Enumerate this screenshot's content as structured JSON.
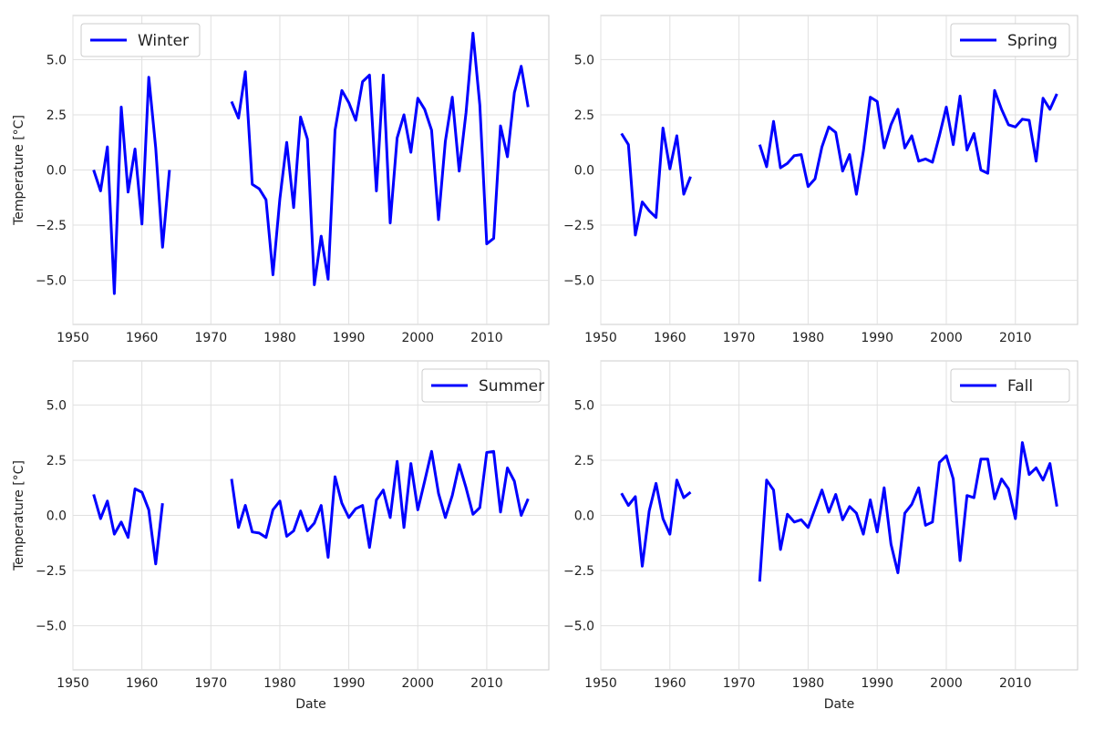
{
  "chart_data": [
    {
      "type": "line",
      "xlabel": "",
      "ylabel": "Temperature [°C]",
      "xlim": [
        1950,
        2019
      ],
      "ylim": [
        -7,
        7
      ],
      "xticks": [
        "1950",
        "1960",
        "1970",
        "1980",
        "1990",
        "2000",
        "2010"
      ],
      "yticks": [
        "−5.0",
        "−2.5",
        "0.0",
        "2.5",
        "5.0"
      ],
      "grid": true,
      "legend_position": "upper-left",
      "series": [
        {
          "name": "Winter",
          "color": "#0000ff",
          "x": [
            1953,
            1954,
            1955,
            1956,
            1957,
            1958,
            1959,
            1960,
            1961,
            1962,
            1963,
            1964,
            null,
            1973,
            1974,
            1975,
            1976,
            1977,
            1978,
            1979,
            1980,
            1981,
            1982,
            1983,
            1984,
            1985,
            1986,
            1987,
            1988,
            1989,
            1990,
            1991,
            1992,
            1993,
            1994,
            1995,
            1996,
            1997,
            1998,
            1999,
            2000,
            2001,
            2002,
            2003,
            2004,
            2005,
            2006,
            2007,
            2008,
            2009,
            2010,
            2011,
            2012,
            2013,
            2014,
            2015,
            2016
          ],
          "y": [
            0.0,
            -0.95,
            1.05,
            -5.6,
            2.85,
            -1.0,
            0.95,
            -2.45,
            4.2,
            1.0,
            -3.5,
            0.0,
            null,
            3.1,
            2.35,
            4.45,
            -0.65,
            -0.85,
            -1.35,
            -4.75,
            -1.3,
            1.25,
            -1.7,
            2.4,
            1.4,
            -5.2,
            -3.0,
            -4.95,
            1.8,
            3.6,
            3.05,
            2.25,
            4.0,
            4.3,
            -0.95,
            4.3,
            -2.4,
            1.45,
            2.5,
            0.8,
            3.25,
            2.75,
            1.8,
            -2.25,
            1.3,
            3.3,
            -0.05,
            2.6,
            6.2,
            2.95,
            -3.35,
            -3.1,
            2.0,
            0.6,
            3.5,
            4.7,
            2.85
          ]
        }
      ]
    },
    {
      "type": "line",
      "xlabel": "",
      "ylabel": "",
      "xlim": [
        1950,
        2019
      ],
      "ylim": [
        -7,
        7
      ],
      "xticks": [
        "1950",
        "1960",
        "1970",
        "1980",
        "1990",
        "2000",
        "2010"
      ],
      "yticks": [
        "−5.0",
        "−2.5",
        "0.0",
        "2.5",
        "5.0"
      ],
      "grid": true,
      "legend_position": "upper-right",
      "series": [
        {
          "name": "Spring",
          "color": "#0000ff",
          "x": [
            1953,
            1954,
            1955,
            1956,
            1957,
            1958,
            1959,
            1960,
            1961,
            1962,
            1963,
            null,
            1973,
            1974,
            1975,
            1976,
            1977,
            1978,
            1979,
            1980,
            1981,
            1982,
            1983,
            1984,
            1985,
            1986,
            1987,
            1988,
            1989,
            1990,
            1991,
            1992,
            1993,
            1994,
            1995,
            1996,
            1997,
            1998,
            1999,
            2000,
            2001,
            2002,
            2003,
            2004,
            2005,
            2006,
            2007,
            2008,
            2009,
            2010,
            2011,
            2012,
            2013,
            2014,
            2015,
            2016
          ],
          "y": [
            1.65,
            1.15,
            -2.95,
            -1.45,
            -1.85,
            -2.15,
            1.9,
            0.05,
            1.55,
            -1.1,
            -0.3,
            null,
            1.15,
            0.15,
            2.2,
            0.1,
            0.3,
            0.65,
            0.7,
            -0.75,
            -0.4,
            1.05,
            1.95,
            1.7,
            -0.05,
            0.7,
            -1.1,
            0.85,
            3.3,
            3.1,
            1.0,
            2.05,
            2.75,
            1.0,
            1.55,
            0.4,
            0.5,
            0.35,
            1.55,
            2.85,
            1.15,
            3.35,
            0.9,
            1.65,
            0.0,
            -0.15,
            3.6,
            2.75,
            2.05,
            1.95,
            2.3,
            2.25,
            0.4,
            3.25,
            2.75,
            3.45
          ]
        }
      ]
    },
    {
      "type": "line",
      "xlabel": "Date",
      "ylabel": "Temperature [°C]",
      "xlim": [
        1950,
        2019
      ],
      "ylim": [
        -7,
        7
      ],
      "xticks": [
        "1950",
        "1960",
        "1970",
        "1980",
        "1990",
        "2000",
        "2010"
      ],
      "yticks": [
        "−5.0",
        "−2.5",
        "0.0",
        "2.5",
        "5.0"
      ],
      "grid": true,
      "legend_position": "upper-right",
      "series": [
        {
          "name": "Summer",
          "color": "#0000ff",
          "x": [
            1953,
            1954,
            1955,
            1956,
            1957,
            1958,
            1959,
            1960,
            1961,
            1962,
            1963,
            null,
            1973,
            1974,
            1975,
            1976,
            1977,
            1978,
            1979,
            1980,
            1981,
            1982,
            1983,
            1984,
            1985,
            1986,
            1987,
            1988,
            1989,
            1990,
            1991,
            1992,
            1993,
            1994,
            1995,
            1996,
            1997,
            1998,
            1999,
            2000,
            2001,
            2002,
            2003,
            2004,
            2005,
            2006,
            2007,
            2008,
            2009,
            2010,
            2011,
            2012,
            2013,
            2014,
            2015,
            2016
          ],
          "y": [
            0.95,
            -0.15,
            0.65,
            -0.85,
            -0.3,
            -1.0,
            1.2,
            1.05,
            0.25,
            -2.2,
            0.55,
            null,
            1.65,
            -0.55,
            0.45,
            -0.75,
            -0.8,
            -1.0,
            0.25,
            0.65,
            -0.95,
            -0.7,
            0.2,
            -0.7,
            -0.35,
            0.45,
            -1.9,
            1.75,
            0.55,
            -0.1,
            0.3,
            0.45,
            -1.45,
            0.7,
            1.15,
            -0.1,
            2.45,
            -0.55,
            2.35,
            0.25,
            1.55,
            2.9,
            1.0,
            -0.1,
            0.9,
            2.3,
            1.25,
            0.05,
            0.35,
            2.85,
            2.9,
            0.15,
            2.15,
            1.55,
            0.0,
            0.75
          ]
        }
      ]
    },
    {
      "type": "line",
      "xlabel": "Date",
      "ylabel": "",
      "xlim": [
        1950,
        2019
      ],
      "ylim": [
        -7,
        7
      ],
      "xticks": [
        "1950",
        "1960",
        "1970",
        "1980",
        "1990",
        "2000",
        "2010"
      ],
      "yticks": [
        "−5.0",
        "−2.5",
        "0.0",
        "2.5",
        "5.0"
      ],
      "grid": true,
      "legend_position": "upper-right",
      "series": [
        {
          "name": "Fall",
          "color": "#0000ff",
          "x": [
            1953,
            1954,
            1955,
            1956,
            1957,
            1958,
            1959,
            1960,
            1961,
            1962,
            1963,
            null,
            1973,
            1974,
            1975,
            1976,
            1977,
            1978,
            1979,
            1980,
            1981,
            1982,
            1983,
            1984,
            1985,
            1986,
            1987,
            1988,
            1989,
            1990,
            1991,
            1992,
            1993,
            1994,
            1995,
            1996,
            1997,
            1998,
            1999,
            2000,
            2001,
            2002,
            2003,
            2004,
            2005,
            2006,
            2007,
            2008,
            2009,
            2010,
            2011,
            2012,
            2013,
            2014,
            2015,
            2016
          ],
          "y": [
            1.0,
            0.45,
            0.85,
            -2.3,
            0.2,
            1.45,
            -0.15,
            -0.85,
            1.6,
            0.8,
            1.05,
            null,
            -3.0,
            1.6,
            1.15,
            -1.55,
            0.05,
            -0.3,
            -0.2,
            -0.55,
            0.3,
            1.15,
            0.15,
            0.95,
            -0.2,
            0.4,
            0.1,
            -0.85,
            0.7,
            -0.75,
            1.25,
            -1.3,
            -2.6,
            0.1,
            0.5,
            1.25,
            -0.45,
            -0.3,
            2.4,
            2.7,
            1.65,
            -2.05,
            0.9,
            0.8,
            2.55,
            2.55,
            0.75,
            1.65,
            1.2,
            -0.15,
            3.3,
            1.85,
            2.15,
            1.6,
            2.35,
            0.4
          ]
        }
      ]
    }
  ]
}
